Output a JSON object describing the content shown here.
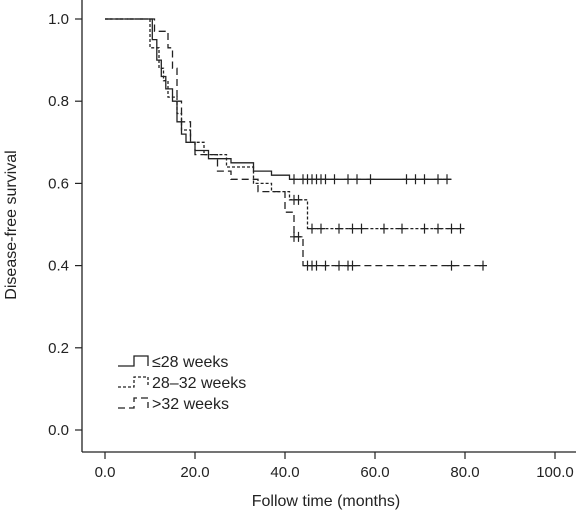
{
  "chart_data": {
    "type": "line",
    "step": true,
    "xlabel": "Follow time (months)",
    "ylabel": "Disease-free survival",
    "xlim": [
      0,
      100
    ],
    "ylim": [
      0,
      1
    ],
    "x_ticks": [
      {
        "value": 0,
        "label": "0.0"
      },
      {
        "value": 20,
        "label": "20.0"
      },
      {
        "value": 40,
        "label": "40.0"
      },
      {
        "value": 60,
        "label": "60.0"
      },
      {
        "value": 80,
        "label": "80.0"
      },
      {
        "value": 100,
        "label": "100.0"
      }
    ],
    "y_ticks": [
      {
        "value": 0,
        "label": "0.0"
      },
      {
        "value": 0.2,
        "label": "0.2"
      },
      {
        "value": 0.4,
        "label": "0.4"
      },
      {
        "value": 0.6,
        "label": "0.6"
      },
      {
        "value": 0.8,
        "label": "0.8"
      },
      {
        "value": 1,
        "label": "1.0"
      }
    ],
    "grid": false,
    "legend_position": "bottom-left",
    "series": [
      {
        "name": "≤28 weeks",
        "dash": "solid",
        "color": "#222222",
        "points": [
          [
            0,
            1
          ],
          [
            10.5,
            1
          ],
          [
            10.5,
            0.95
          ],
          [
            11.5,
            0.95
          ],
          [
            11.5,
            0.9
          ],
          [
            12.5,
            0.9
          ],
          [
            12.5,
            0.86
          ],
          [
            13.5,
            0.86
          ],
          [
            13.5,
            0.83
          ],
          [
            15,
            0.83
          ],
          [
            15,
            0.8
          ],
          [
            16,
            0.8
          ],
          [
            16,
            0.75
          ],
          [
            17,
            0.75
          ],
          [
            17,
            0.72
          ],
          [
            18,
            0.72
          ],
          [
            18,
            0.7
          ],
          [
            20,
            0.7
          ],
          [
            20,
            0.68
          ],
          [
            23,
            0.68
          ],
          [
            23,
            0.66
          ],
          [
            28,
            0.66
          ],
          [
            28,
            0.65
          ],
          [
            33,
            0.65
          ],
          [
            33,
            0.63
          ],
          [
            37,
            0.63
          ],
          [
            37,
            0.62
          ],
          [
            41,
            0.62
          ],
          [
            41,
            0.61
          ],
          [
            77,
            0.61
          ]
        ],
        "censored": [
          42,
          44,
          45,
          46,
          47,
          48,
          49,
          51,
          54,
          56,
          59,
          67,
          69,
          71,
          74,
          76
        ]
      },
      {
        "name": "28–32 weeks",
        "dash": "short",
        "color": "#222222",
        "points": [
          [
            0,
            1
          ],
          [
            10,
            1
          ],
          [
            10,
            0.93
          ],
          [
            12,
            0.93
          ],
          [
            12,
            0.88
          ],
          [
            13,
            0.88
          ],
          [
            13,
            0.85
          ],
          [
            14,
            0.85
          ],
          [
            14,
            0.81
          ],
          [
            16,
            0.81
          ],
          [
            16,
            0.77
          ],
          [
            17,
            0.77
          ],
          [
            17,
            0.73
          ],
          [
            19,
            0.73
          ],
          [
            19,
            0.7
          ],
          [
            22,
            0.7
          ],
          [
            22,
            0.67
          ],
          [
            27,
            0.67
          ],
          [
            27,
            0.64
          ],
          [
            33,
            0.64
          ],
          [
            33,
            0.6
          ],
          [
            37,
            0.6
          ],
          [
            37,
            0.58
          ],
          [
            41,
            0.58
          ],
          [
            41,
            0.56
          ],
          [
            45,
            0.56
          ],
          [
            45,
            0.49
          ],
          [
            79,
            0.49
          ]
        ],
        "censored": [
          42,
          43,
          46,
          48,
          52,
          55,
          57,
          62,
          66,
          71,
          74,
          77,
          79
        ]
      },
      {
        "name": ">32 weeks",
        "dash": "long",
        "color": "#222222",
        "points": [
          [
            0,
            1
          ],
          [
            11,
            1
          ],
          [
            11,
            0.97
          ],
          [
            14,
            0.97
          ],
          [
            14,
            0.93
          ],
          [
            15,
            0.93
          ],
          [
            15,
            0.88
          ],
          [
            16,
            0.88
          ],
          [
            16,
            0.8
          ],
          [
            17,
            0.8
          ],
          [
            17,
            0.75
          ],
          [
            19,
            0.75
          ],
          [
            19,
            0.7
          ],
          [
            20,
            0.7
          ],
          [
            20,
            0.67
          ],
          [
            25,
            0.67
          ],
          [
            25,
            0.63
          ],
          [
            28,
            0.63
          ],
          [
            28,
            0.61
          ],
          [
            34,
            0.61
          ],
          [
            34,
            0.58
          ],
          [
            40,
            0.58
          ],
          [
            40,
            0.53
          ],
          [
            42,
            0.53
          ],
          [
            42,
            0.47
          ],
          [
            44,
            0.47
          ],
          [
            44,
            0.4
          ],
          [
            84,
            0.4
          ]
        ],
        "censored": [
          42,
          43,
          45,
          46,
          47,
          49,
          52,
          54,
          55,
          77,
          84
        ]
      }
    ]
  }
}
